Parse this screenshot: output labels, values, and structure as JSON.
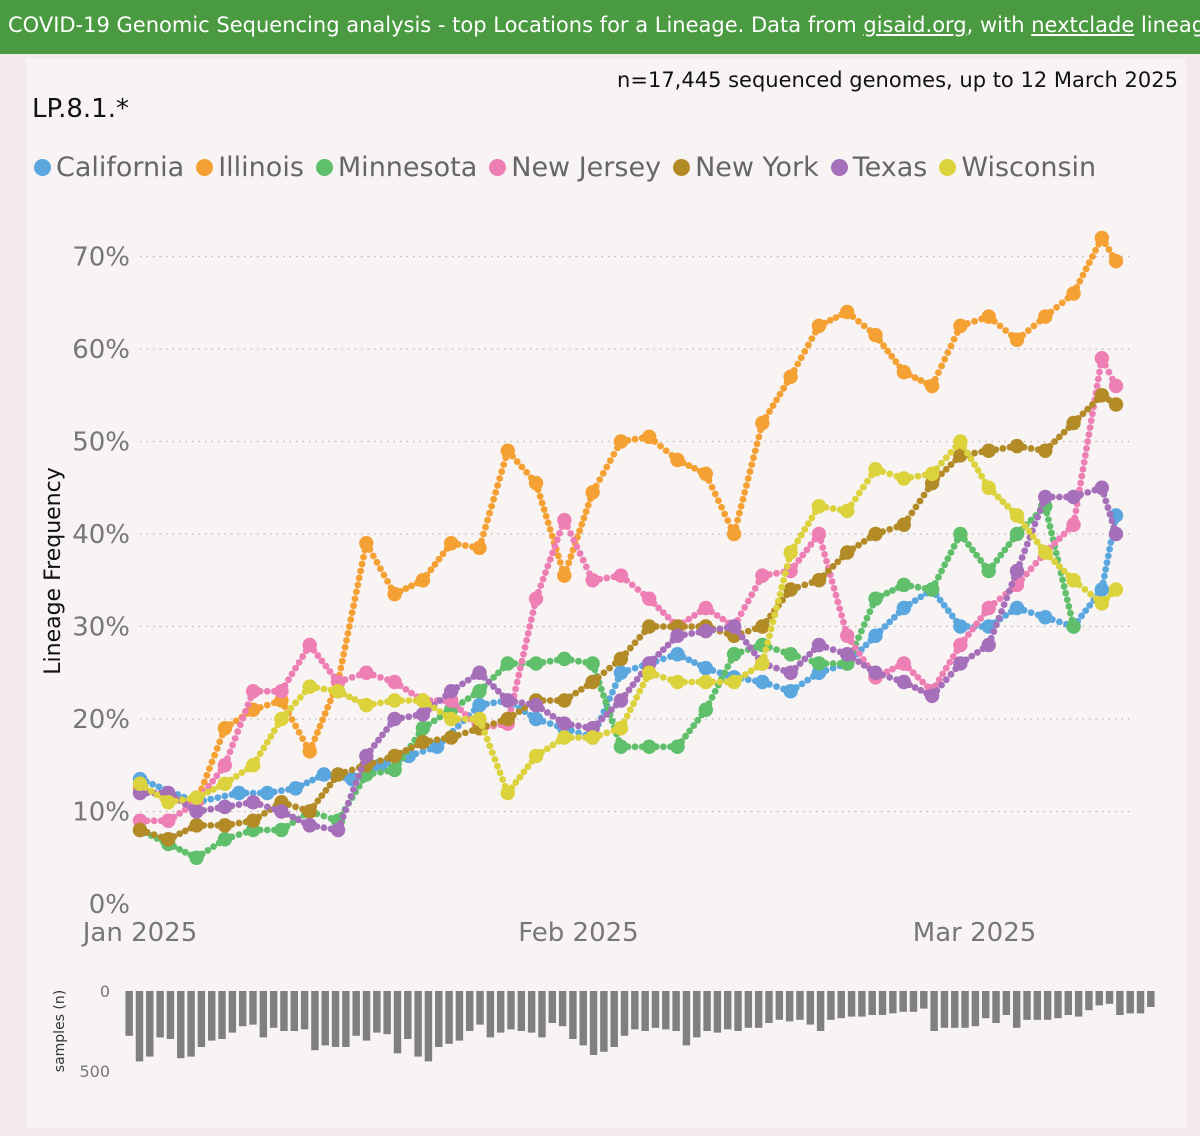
{
  "banner": {
    "pre": "COVID-19 Genomic Sequencing analysis - top Locations for a Lineage. Data from ",
    "link1": "gisaid.org",
    "mid": ", with ",
    "link2": "nextclade",
    "post": " lineages Source f"
  },
  "header": {
    "sample_count": "n=17,445 sequenced genomes, up to 12 March 2025",
    "lineage": "LP.8.1.*"
  },
  "chart_data": [
    {
      "type": "line",
      "ylabel": "Lineage Frequency",
      "ylim": [
        0,
        0.72
      ],
      "y_ticks": [
        0,
        0.1,
        0.2,
        0.3,
        0.4,
        0.5,
        0.6,
        0.7
      ],
      "y_tick_labels": [
        "0%",
        "10%",
        "20%",
        "30%",
        "40%",
        "50%",
        "60%",
        "70%"
      ],
      "x_range": [
        "2025-01-01",
        "2025-03-11"
      ],
      "x_ticks": [
        "2025-01-01",
        "2025-02-01",
        "2025-03-01"
      ],
      "x_tick_labels": [
        "Jan 2025",
        "Feb 2025",
        "Mar 2025"
      ],
      "grid": "horizontal dotted",
      "legend_position": "top-left",
      "series": [
        {
          "name": "California",
          "color": "#5aa7e0",
          "x": [
            "2025-01-01",
            "2025-01-05",
            "2025-01-08",
            "2025-01-10",
            "2025-01-12",
            "2025-01-14",
            "2025-01-16",
            "2025-01-18",
            "2025-01-20",
            "2025-01-22",
            "2025-01-25",
            "2025-01-27",
            "2025-01-29",
            "2025-01-31",
            "2025-02-02",
            "2025-02-04",
            "2025-02-06",
            "2025-02-08",
            "2025-02-10",
            "2025-02-12",
            "2025-02-14",
            "2025-02-16",
            "2025-02-18",
            "2025-02-20",
            "2025-02-22",
            "2025-02-24",
            "2025-02-26",
            "2025-02-28",
            "2025-03-02",
            "2025-03-04",
            "2025-03-06",
            "2025-03-08",
            "2025-03-10",
            "2025-03-11"
          ],
          "y": [
            0.135,
            0.11,
            0.12,
            0.12,
            0.125,
            0.14,
            0.135,
            0.15,
            0.16,
            0.17,
            0.215,
            0.22,
            0.2,
            0.19,
            0.18,
            0.25,
            0.26,
            0.27,
            0.255,
            0.245,
            0.24,
            0.23,
            0.25,
            0.26,
            0.29,
            0.32,
            0.34,
            0.3,
            0.3,
            0.32,
            0.31,
            0.3,
            0.34,
            0.42
          ]
        },
        {
          "name": "Illinois",
          "color": "#f5a033",
          "x": [
            "2025-01-01",
            "2025-01-03",
            "2025-01-05",
            "2025-01-07",
            "2025-01-09",
            "2025-01-11",
            "2025-01-13",
            "2025-01-15",
            "2025-01-17",
            "2025-01-19",
            "2025-01-21",
            "2025-01-23",
            "2025-01-25",
            "2025-01-27",
            "2025-01-29",
            "2025-01-31",
            "2025-02-02",
            "2025-02-04",
            "2025-02-06",
            "2025-02-08",
            "2025-02-10",
            "2025-02-12",
            "2025-02-14",
            "2025-02-16",
            "2025-02-18",
            "2025-02-20",
            "2025-02-22",
            "2025-02-24",
            "2025-02-26",
            "2025-02-28",
            "2025-03-02",
            "2025-03-04",
            "2025-03-06",
            "2025-03-08",
            "2025-03-10",
            "2025-03-11"
          ],
          "y": [
            0.125,
            0.115,
            0.11,
            0.19,
            0.21,
            0.22,
            0.165,
            0.24,
            0.39,
            0.335,
            0.35,
            0.39,
            0.385,
            0.49,
            0.455,
            0.355,
            0.445,
            0.5,
            0.505,
            0.48,
            0.465,
            0.4,
            0.52,
            0.57,
            0.625,
            0.64,
            0.615,
            0.575,
            0.56,
            0.625,
            0.635,
            0.61,
            0.635,
            0.66,
            0.72,
            0.695
          ]
        },
        {
          "name": "Minnesota",
          "color": "#5fbf6a",
          "x": [
            "2025-01-01",
            "2025-01-03",
            "2025-01-05",
            "2025-01-07",
            "2025-01-09",
            "2025-01-11",
            "2025-01-13",
            "2025-01-15",
            "2025-01-17",
            "2025-01-19",
            "2025-01-21",
            "2025-01-23",
            "2025-01-25",
            "2025-01-27",
            "2025-01-29",
            "2025-01-31",
            "2025-02-02",
            "2025-02-04",
            "2025-02-06",
            "2025-02-08",
            "2025-02-10",
            "2025-02-12",
            "2025-02-14",
            "2025-02-16",
            "2025-02-18",
            "2025-02-20",
            "2025-02-22",
            "2025-02-24",
            "2025-02-26",
            "2025-02-28",
            "2025-03-02",
            "2025-03-04",
            "2025-03-06",
            "2025-03-08"
          ],
          "y": [
            0.08,
            0.065,
            0.05,
            0.07,
            0.08,
            0.08,
            0.1,
            0.09,
            0.14,
            0.145,
            0.19,
            0.21,
            0.23,
            0.26,
            0.26,
            0.265,
            0.26,
            0.17,
            0.17,
            0.17,
            0.21,
            0.27,
            0.28,
            0.27,
            0.26,
            0.26,
            0.33,
            0.345,
            0.34,
            0.4,
            0.36,
            0.4,
            0.43,
            0.3
          ]
        },
        {
          "name": "New Jersey",
          "color": "#ee7fb4",
          "x": [
            "2025-01-01",
            "2025-01-03",
            "2025-01-05",
            "2025-01-07",
            "2025-01-09",
            "2025-01-11",
            "2025-01-13",
            "2025-01-15",
            "2025-01-17",
            "2025-01-19",
            "2025-01-21",
            "2025-01-23",
            "2025-01-25",
            "2025-01-27",
            "2025-01-29",
            "2025-01-31",
            "2025-02-02",
            "2025-02-04",
            "2025-02-06",
            "2025-02-08",
            "2025-02-10",
            "2025-02-12",
            "2025-02-14",
            "2025-02-16",
            "2025-02-18",
            "2025-02-20",
            "2025-02-22",
            "2025-02-24",
            "2025-02-26",
            "2025-02-28",
            "2025-03-02",
            "2025-03-04",
            "2025-03-06",
            "2025-03-08",
            "2025-03-10",
            "2025-03-11"
          ],
          "y": [
            0.09,
            0.09,
            0.11,
            0.15,
            0.23,
            0.23,
            0.28,
            0.24,
            0.25,
            0.24,
            0.22,
            0.22,
            0.19,
            0.195,
            0.33,
            0.415,
            0.35,
            0.355,
            0.33,
            0.3,
            0.32,
            0.3,
            0.355,
            0.36,
            0.4,
            0.29,
            0.245,
            0.26,
            0.23,
            0.28,
            0.32,
            0.345,
            0.38,
            0.41,
            0.59,
            0.56
          ]
        },
        {
          "name": "New York",
          "color": "#b38b26",
          "x": [
            "2025-01-01",
            "2025-01-03",
            "2025-01-05",
            "2025-01-07",
            "2025-01-09",
            "2025-01-11",
            "2025-01-13",
            "2025-01-15",
            "2025-01-17",
            "2025-01-19",
            "2025-01-21",
            "2025-01-23",
            "2025-01-25",
            "2025-01-27",
            "2025-01-29",
            "2025-01-31",
            "2025-02-02",
            "2025-02-04",
            "2025-02-06",
            "2025-02-08",
            "2025-02-10",
            "2025-02-12",
            "2025-02-14",
            "2025-02-16",
            "2025-02-18",
            "2025-02-20",
            "2025-02-22",
            "2025-02-24",
            "2025-02-26",
            "2025-02-28",
            "2025-03-02",
            "2025-03-04",
            "2025-03-06",
            "2025-03-08",
            "2025-03-10",
            "2025-03-11"
          ],
          "y": [
            0.08,
            0.07,
            0.085,
            0.085,
            0.09,
            0.11,
            0.1,
            0.14,
            0.15,
            0.16,
            0.175,
            0.18,
            0.19,
            0.2,
            0.22,
            0.22,
            0.24,
            0.265,
            0.3,
            0.3,
            0.3,
            0.29,
            0.3,
            0.34,
            0.35,
            0.38,
            0.4,
            0.41,
            0.455,
            0.485,
            0.49,
            0.495,
            0.49,
            0.52,
            0.55,
            0.54
          ]
        },
        {
          "name": "Texas",
          "color": "#a66fba",
          "x": [
            "2025-01-01",
            "2025-01-03",
            "2025-01-05",
            "2025-01-07",
            "2025-01-09",
            "2025-01-11",
            "2025-01-13",
            "2025-01-15",
            "2025-01-17",
            "2025-01-19",
            "2025-01-21",
            "2025-01-23",
            "2025-01-25",
            "2025-01-27",
            "2025-01-29",
            "2025-01-31",
            "2025-02-02",
            "2025-02-04",
            "2025-02-06",
            "2025-02-08",
            "2025-02-10",
            "2025-02-12",
            "2025-02-14",
            "2025-02-16",
            "2025-02-18",
            "2025-02-20",
            "2025-02-22",
            "2025-02-24",
            "2025-02-26",
            "2025-02-28",
            "2025-03-02",
            "2025-03-04",
            "2025-03-06",
            "2025-03-08",
            "2025-03-10",
            "2025-03-11"
          ],
          "y": [
            0.12,
            0.12,
            0.1,
            0.105,
            0.11,
            0.1,
            0.085,
            0.08,
            0.16,
            0.2,
            0.205,
            0.23,
            0.25,
            0.22,
            0.215,
            0.195,
            0.19,
            0.22,
            0.26,
            0.29,
            0.295,
            0.3,
            0.26,
            0.25,
            0.28,
            0.27,
            0.25,
            0.24,
            0.225,
            0.26,
            0.28,
            0.36,
            0.44,
            0.44,
            0.45,
            0.4
          ]
        },
        {
          "name": "Wisconsin",
          "color": "#dcd23c",
          "x": [
            "2025-01-01",
            "2025-01-03",
            "2025-01-05",
            "2025-01-07",
            "2025-01-09",
            "2025-01-11",
            "2025-01-13",
            "2025-01-15",
            "2025-01-17",
            "2025-01-19",
            "2025-01-21",
            "2025-01-23",
            "2025-01-25",
            "2025-01-27",
            "2025-01-29",
            "2025-01-31",
            "2025-02-02",
            "2025-02-04",
            "2025-02-06",
            "2025-02-08",
            "2025-02-10",
            "2025-02-12",
            "2025-02-14",
            "2025-02-16",
            "2025-02-18",
            "2025-02-20",
            "2025-02-22",
            "2025-02-24",
            "2025-02-26",
            "2025-02-28",
            "2025-03-02",
            "2025-03-04",
            "2025-03-06",
            "2025-03-08",
            "2025-03-10",
            "2025-03-11"
          ],
          "y": [
            0.13,
            0.11,
            0.115,
            0.13,
            0.15,
            0.2,
            0.235,
            0.23,
            0.215,
            0.22,
            0.22,
            0.2,
            0.2,
            0.12,
            0.16,
            0.18,
            0.18,
            0.19,
            0.25,
            0.24,
            0.24,
            0.24,
            0.26,
            0.38,
            0.43,
            0.425,
            0.47,
            0.46,
            0.465,
            0.5,
            0.45,
            0.42,
            0.38,
            0.35,
            0.325,
            0.34
          ]
        }
      ]
    },
    {
      "type": "bar",
      "ylabel": "samples (n)",
      "ylim": [
        0,
        500
      ],
      "y_ticks": [
        0,
        500
      ],
      "y_tick_labels": [
        "0",
        "500"
      ],
      "values": [
        280,
        440,
        410,
        290,
        300,
        420,
        410,
        350,
        310,
        300,
        260,
        220,
        210,
        290,
        230,
        250,
        250,
        240,
        370,
        340,
        350,
        350,
        280,
        310,
        260,
        270,
        390,
        300,
        410,
        440,
        350,
        330,
        310,
        250,
        210,
        290,
        260,
        240,
        250,
        260,
        290,
        200,
        220,
        300,
        340,
        400,
        380,
        350,
        280,
        240,
        250,
        230,
        240,
        250,
        340,
        290,
        250,
        260,
        240,
        250,
        230,
        230,
        200,
        180,
        190,
        180,
        210,
        250,
        180,
        170,
        160,
        160,
        150,
        150,
        140,
        130,
        130,
        110,
        250,
        230,
        230,
        230,
        220,
        170,
        200,
        150,
        230,
        180,
        180,
        180,
        170,
        150,
        160,
        120,
        90,
        80,
        150,
        140,
        140,
        100
      ]
    }
  ]
}
